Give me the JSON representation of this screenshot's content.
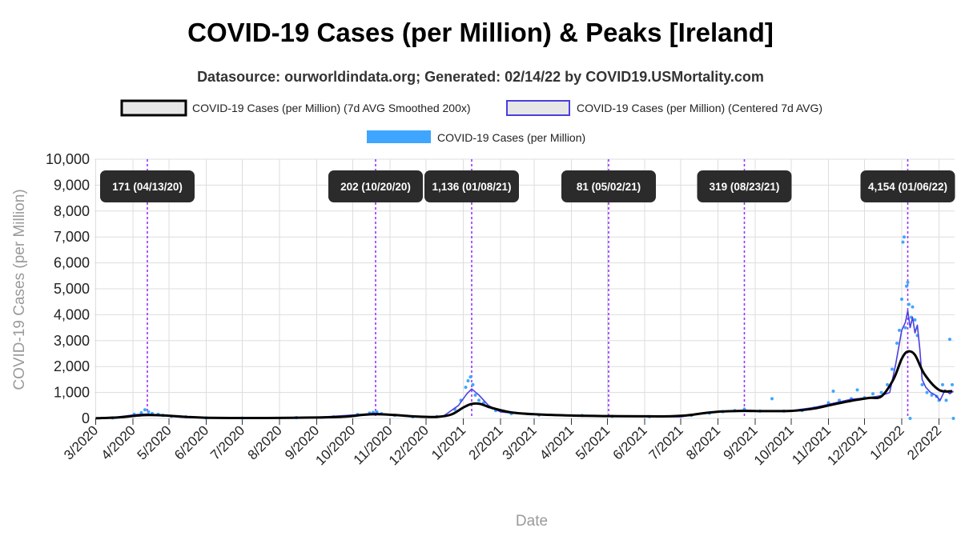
{
  "header": {
    "title": "COVID-19 Cases (per Million) & Peaks [Ireland]",
    "subtitle": "Datasource: ourworldindata.org; Generated: 02/14/22 by COVID19.USMortality.com"
  },
  "legend": [
    {
      "label": "COVID-19 Cases (per Million) (7d AVG Smoothed 200x)",
      "color": "#000000",
      "kind": "box"
    },
    {
      "label": "COVID-19 Cases (per Million) (Centered 7d AVG)",
      "color": "#4a3fe0",
      "kind": "box"
    },
    {
      "label": "COVID-19 Cases (per Million)",
      "color": "#3ea6ff",
      "kind": "bar"
    }
  ],
  "colors": {
    "raw_points": "#3ea6ff",
    "centered_avg": "#4a3fe0",
    "smoothed": "#000000",
    "peak_line": "#9b30ff",
    "peak_label_bg": "#2b2b2b",
    "grid": "#dddddd"
  },
  "chart_data": {
    "type": "line",
    "xlabel": "Date",
    "ylabel": "COVID-19 Cases (per Million)",
    "ylim": [
      0,
      10000
    ],
    "yticks": [
      0,
      1000,
      2000,
      3000,
      4000,
      5000,
      6000,
      7000,
      8000,
      9000,
      10000
    ],
    "yticklabels": [
      "0",
      "1,000",
      "2,000",
      "3,000",
      "4,000",
      "5,000",
      "6,000",
      "7,000",
      "8,000",
      "9,000",
      "10,000"
    ],
    "xlim": [
      "2020-02-29",
      "2022-02-14"
    ],
    "xticks": [
      "2020-03-01",
      "2020-04-01",
      "2020-05-01",
      "2020-06-01",
      "2020-07-01",
      "2020-08-01",
      "2020-09-01",
      "2020-10-01",
      "2020-11-01",
      "2020-12-01",
      "2021-01-01",
      "2021-02-01",
      "2021-03-01",
      "2021-04-01",
      "2021-05-01",
      "2021-06-01",
      "2021-07-01",
      "2021-08-01",
      "2021-09-01",
      "2021-10-01",
      "2021-11-01",
      "2021-12-01",
      "2022-01-01",
      "2022-02-01"
    ],
    "xticklabels": [
      "3/2020",
      "4/2020",
      "5/2020",
      "6/2020",
      "7/2020",
      "8/2020",
      "9/2020",
      "10/2020",
      "11/2020",
      "12/2020",
      "1/2021",
      "2/2021",
      "3/2021",
      "4/2021",
      "5/2021",
      "6/2021",
      "7/2021",
      "8/2021",
      "9/2021",
      "10/2021",
      "11/2021",
      "12/2021",
      "1/2022",
      "2/2022"
    ],
    "peaks": [
      {
        "date": "2020-04-13",
        "label": "171 (04/13/20)"
      },
      {
        "date": "2020-10-20",
        "label": "202 (10/20/20)"
      },
      {
        "date": "2021-01-08",
        "label": "1,136 (01/08/21)"
      },
      {
        "date": "2021-05-02",
        "label": "81 (05/02/21)"
      },
      {
        "date": "2021-08-23",
        "label": "319 (08/23/21)"
      },
      {
        "date": "2022-01-06",
        "label": "4,154 (01/06/22)"
      }
    ],
    "series": [
      {
        "name": "COVID-19 Cases (per Million) (7d AVG Smoothed 200x)",
        "x": [
          "2020-03-01",
          "2020-03-20",
          "2020-04-05",
          "2020-04-15",
          "2020-04-28",
          "2020-05-15",
          "2020-06-01",
          "2020-07-01",
          "2020-08-01",
          "2020-09-01",
          "2020-09-25",
          "2020-10-10",
          "2020-10-22",
          "2020-11-05",
          "2020-11-25",
          "2020-12-10",
          "2020-12-22",
          "2021-01-01",
          "2021-01-08",
          "2021-01-15",
          "2021-01-25",
          "2021-02-10",
          "2021-03-01",
          "2021-04-01",
          "2021-05-01",
          "2021-06-01",
          "2021-06-20",
          "2021-07-05",
          "2021-07-20",
          "2021-08-05",
          "2021-08-23",
          "2021-09-10",
          "2021-10-01",
          "2021-10-20",
          "2021-11-05",
          "2021-11-20",
          "2021-12-05",
          "2021-12-15",
          "2021-12-25",
          "2022-01-01",
          "2022-01-06",
          "2022-01-12",
          "2022-01-20",
          "2022-02-01",
          "2022-02-12"
        ],
        "y": [
          5,
          40,
          110,
          130,
          110,
          60,
          25,
          15,
          20,
          35,
          70,
          140,
          160,
          130,
          70,
          60,
          150,
          420,
          560,
          560,
          400,
          230,
          160,
          110,
          90,
          80,
          80,
          110,
          200,
          270,
          290,
          280,
          290,
          380,
          540,
          680,
          790,
          850,
          1500,
          2300,
          2580,
          2450,
          1700,
          1100,
          1050
        ]
      },
      {
        "name": "COVID-19 Cases (per Million) (Centered 7d AVG)",
        "x": [
          "2020-03-01",
          "2020-03-20",
          "2020-04-05",
          "2020-04-13",
          "2020-04-25",
          "2020-05-10",
          "2020-06-01",
          "2020-07-01",
          "2020-08-01",
          "2020-09-01",
          "2020-10-01",
          "2020-10-20",
          "2020-11-05",
          "2020-11-25",
          "2020-12-15",
          "2020-12-28",
          "2021-01-04",
          "2021-01-08",
          "2021-01-14",
          "2021-01-22",
          "2021-02-01",
          "2021-02-20",
          "2021-03-15",
          "2021-04-15",
          "2021-05-02",
          "2021-06-01",
          "2021-07-01",
          "2021-07-20",
          "2021-08-05",
          "2021-08-23",
          "2021-09-10",
          "2021-10-01",
          "2021-10-20",
          "2021-11-05",
          "2021-11-20",
          "2021-12-05",
          "2021-12-15",
          "2021-12-22",
          "2021-12-27",
          "2022-01-01",
          "2022-01-04",
          "2022-01-06",
          "2022-01-08",
          "2022-01-10",
          "2022-01-12",
          "2022-01-14",
          "2022-01-16",
          "2022-01-18",
          "2022-01-21",
          "2022-01-25",
          "2022-01-29",
          "2022-02-02",
          "2022-02-06",
          "2022-02-10",
          "2022-02-13"
        ],
        "y": [
          5,
          60,
          150,
          171,
          120,
          50,
          20,
          12,
          20,
          40,
          130,
          202,
          140,
          60,
          70,
          500,
          950,
          1136,
          900,
          500,
          250,
          170,
          130,
          100,
          81,
          70,
          60,
          200,
          260,
          319,
          280,
          300,
          420,
          580,
          740,
          800,
          880,
          1000,
          2100,
          3400,
          3700,
          4154,
          3500,
          3900,
          3300,
          3600,
          2700,
          1500,
          1200,
          1000,
          900,
          700,
          1100,
          950,
          1050
        ]
      }
    ],
    "scatter": {
      "name": "COVID-19 Cases (per Million)",
      "points": [
        [
          "2020-03-15",
          20
        ],
        [
          "2020-04-02",
          160
        ],
        [
          "2020-04-08",
          220
        ],
        [
          "2020-04-11",
          330
        ],
        [
          "2020-04-14",
          250
        ],
        [
          "2020-04-17",
          190
        ],
        [
          "2020-04-22",
          160
        ],
        [
          "2020-04-26",
          120
        ],
        [
          "2020-05-03",
          80
        ],
        [
          "2020-05-15",
          60
        ],
        [
          "2020-06-01",
          20
        ],
        [
          "2020-07-01",
          10
        ],
        [
          "2020-08-15",
          30
        ],
        [
          "2020-09-15",
          60
        ],
        [
          "2020-10-05",
          150
        ],
        [
          "2020-10-15",
          210
        ],
        [
          "2020-10-18",
          230
        ],
        [
          "2020-10-21",
          250
        ],
        [
          "2020-10-25",
          180
        ],
        [
          "2020-11-05",
          120
        ],
        [
          "2020-11-20",
          60
        ],
        [
          "2020-12-10",
          70
        ],
        [
          "2020-12-25",
          350
        ],
        [
          "2020-12-30",
          700
        ],
        [
          "2021-01-03",
          1200
        ],
        [
          "2021-01-05",
          1450
        ],
        [
          "2021-01-07",
          1600
        ],
        [
          "2021-01-09",
          1300
        ],
        [
          "2021-01-11",
          900
        ],
        [
          "2021-01-14",
          700
        ],
        [
          "2021-01-18",
          600
        ],
        [
          "2021-01-22",
          450
        ],
        [
          "2021-01-28",
          300
        ],
        [
          "2021-02-10",
          180
        ],
        [
          "2021-03-05",
          130
        ],
        [
          "2021-04-10",
          110
        ],
        [
          "2021-05-05",
          80
        ],
        [
          "2021-06-05",
          70
        ],
        [
          "2021-07-10",
          120
        ],
        [
          "2021-07-25",
          200
        ],
        [
          "2021-08-05",
          260
        ],
        [
          "2021-08-15",
          300
        ],
        [
          "2021-08-23",
          360
        ],
        [
          "2021-09-05",
          280
        ],
        [
          "2021-09-15",
          760
        ],
        [
          "2021-09-25",
          280
        ],
        [
          "2021-10-10",
          300
        ],
        [
          "2021-10-20",
          400
        ],
        [
          "2021-11-01",
          600
        ],
        [
          "2021-11-05",
          1050
        ],
        [
          "2021-11-10",
          700
        ],
        [
          "2021-11-20",
          760
        ],
        [
          "2021-11-25",
          1100
        ],
        [
          "2021-12-01",
          800
        ],
        [
          "2021-12-08",
          950
        ],
        [
          "2021-12-15",
          1000
        ],
        [
          "2021-12-20",
          1300
        ],
        [
          "2021-12-24",
          1900
        ],
        [
          "2021-12-28",
          2900
        ],
        [
          "2021-12-30",
          3400
        ],
        [
          "2022-01-01",
          4600
        ],
        [
          "2022-01-02",
          6800
        ],
        [
          "2022-01-03",
          7000
        ],
        [
          "2022-01-04",
          3500
        ],
        [
          "2022-01-05",
          5100
        ],
        [
          "2022-01-06",
          5250
        ],
        [
          "2022-01-07",
          4400
        ],
        [
          "2022-01-08",
          0
        ],
        [
          "2022-01-09",
          3900
        ],
        [
          "2022-01-10",
          4300
        ],
        [
          "2022-01-12",
          3800
        ],
        [
          "2022-01-14",
          3200
        ],
        [
          "2022-01-16",
          2100
        ],
        [
          "2022-01-18",
          1300
        ],
        [
          "2022-01-22",
          1000
        ],
        [
          "2022-01-26",
          900
        ],
        [
          "2022-01-30",
          850
        ],
        [
          "2022-02-01",
          700
        ],
        [
          "2022-02-04",
          1300
        ],
        [
          "2022-02-07",
          700
        ],
        [
          "2022-02-10",
          3050
        ],
        [
          "2022-02-12",
          1300
        ],
        [
          "2022-02-13",
          0
        ]
      ]
    }
  }
}
